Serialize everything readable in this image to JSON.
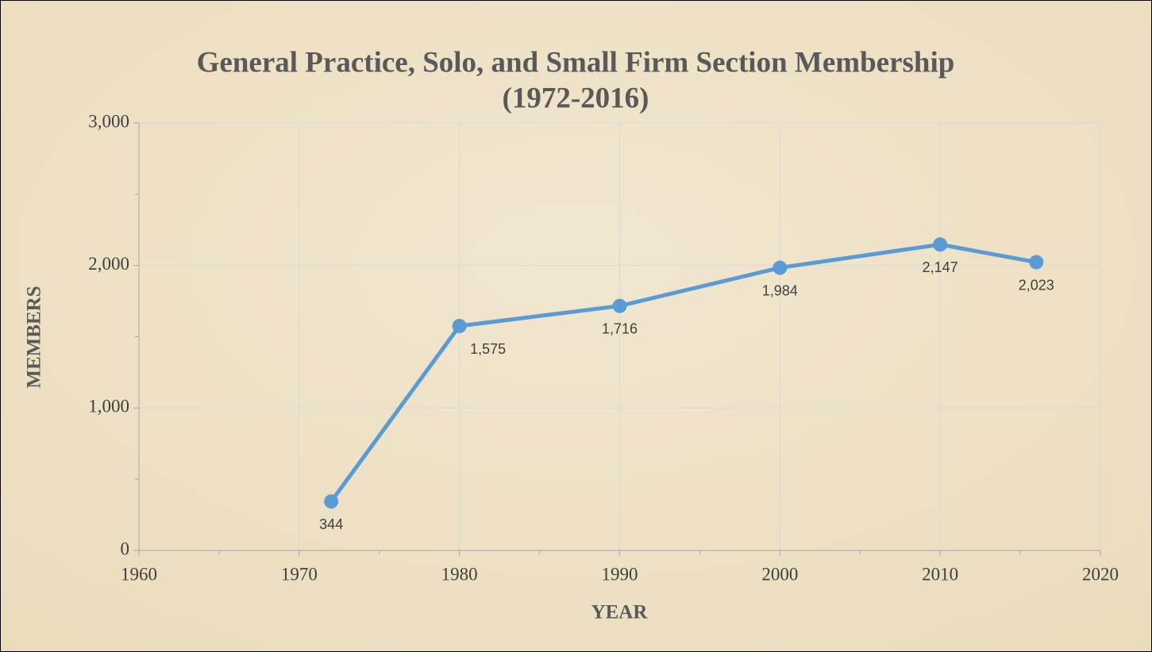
{
  "chart_data": {
    "type": "line",
    "title": "General Practice, Solo, and Small Firm Section Membership",
    "subtitle": "(1972-2016)",
    "x_label": "YEAR",
    "y_label": "MEMBERS",
    "x": [
      1972,
      1980,
      1990,
      2000,
      2010,
      2016
    ],
    "values": [
      344,
      1575,
      1716,
      1984,
      2147,
      2023
    ],
    "value_labels": [
      "344",
      "1,575",
      "1,716",
      "1,984",
      "2,147",
      "2,023"
    ],
    "color": "#5b9bd5",
    "xlim": [
      1960,
      2020
    ],
    "xticks": [
      1960,
      1970,
      1980,
      1990,
      2000,
      2010,
      2020
    ],
    "xminorticks": [
      1965,
      1975,
      1985,
      1995,
      2005,
      2015
    ],
    "ylim": [
      0,
      3000
    ],
    "yticks": [
      0,
      {
        "value": 1000,
        "label": "1,000"
      },
      {
        "value": 2000,
        "label": "2,000"
      },
      {
        "value": 3000,
        "label": "3,000"
      }
    ],
    "yminorticks": [
      500,
      1500,
      2500
    ],
    "grid": true
  }
}
